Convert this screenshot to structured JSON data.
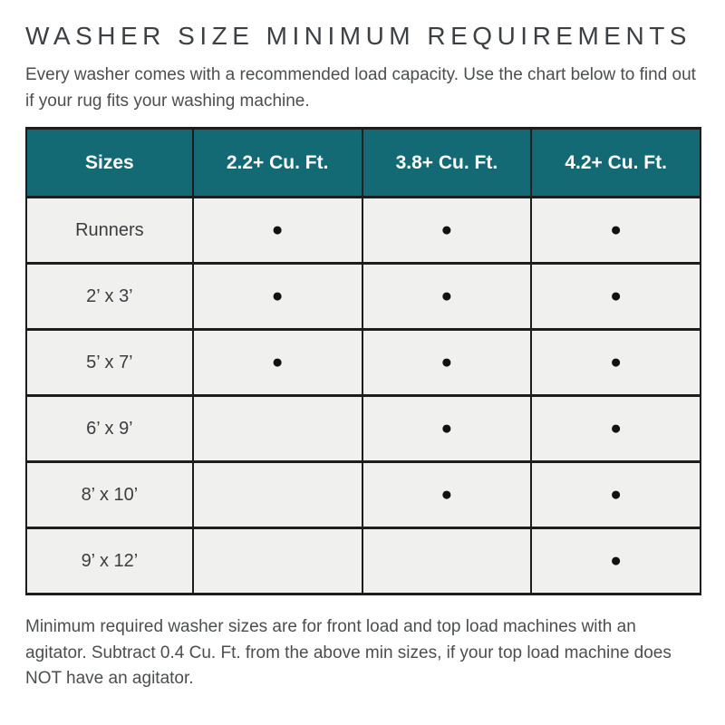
{
  "page": {
    "title": "WASHER SIZE MINIMUM REQUIREMENTS",
    "subtitle": "Every washer comes with a recommended load capacity. Use the chart below to find out if your rug fits your washing machine.",
    "footnote": "Minimum required washer sizes are for front load and top load machines with an agitator. Subtract 0.4 Cu. Ft. from the above min sizes, if your top load machine does NOT have an agitator."
  },
  "colors": {
    "header_bg": "#136974",
    "header_text": "#ffffff",
    "row_bg": "#f0f0ee",
    "border": "#1d1d1d",
    "dot": "#121212",
    "title_text": "#3d4042",
    "body_text": "#4b4e50"
  },
  "chart_data": {
    "type": "table",
    "title": "WASHER SIZE MINIMUM REQUIREMENTS",
    "columns": [
      "Sizes",
      "2.2+ Cu. Ft.",
      "3.8+ Cu. Ft.",
      "4.2+ Cu. Ft."
    ],
    "dot_glyph": "●",
    "dot_meaning": "rug size fits washer of this capacity",
    "rows": [
      [
        "Runners",
        "●",
        "●",
        "●"
      ],
      [
        "2’ x 3’",
        "●",
        "●",
        "●"
      ],
      [
        "5’ x 7’",
        "●",
        "●",
        "●"
      ],
      [
        "6’ x 9’",
        "",
        "●",
        "●"
      ],
      [
        "8’ x 10’",
        "",
        "●",
        "●"
      ],
      [
        "9’ x 12’",
        "",
        "",
        "●"
      ]
    ],
    "rows_as_booleans": [
      {
        "size": "Runners",
        "fits_2_2": true,
        "fits_3_8": true,
        "fits_4_2": true
      },
      {
        "size": "2’ x 3’",
        "fits_2_2": true,
        "fits_3_8": true,
        "fits_4_2": true
      },
      {
        "size": "5’ x 7’",
        "fits_2_2": true,
        "fits_3_8": true,
        "fits_4_2": true
      },
      {
        "size": "6’ x 9’",
        "fits_2_2": false,
        "fits_3_8": true,
        "fits_4_2": true
      },
      {
        "size": "8’ x 10’",
        "fits_2_2": false,
        "fits_3_8": true,
        "fits_4_2": true
      },
      {
        "size": "9’ x 12’",
        "fits_2_2": false,
        "fits_3_8": false,
        "fits_4_2": true
      }
    ]
  }
}
